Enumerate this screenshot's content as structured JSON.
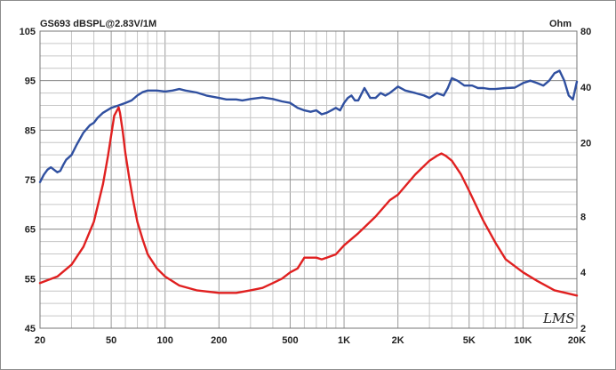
{
  "chart_data": {
    "type": "line",
    "title": "GS693 dBSPL@2.83V/1M",
    "right_unit": "Ohm",
    "brand": "LMS",
    "x_scale": "log",
    "xlim": [
      20,
      20000
    ],
    "ylim_left": [
      45,
      105
    ],
    "ylim_right": [
      2,
      80
    ],
    "y_right_scale": "log",
    "grid": true,
    "x_ticks": [
      {
        "v": 20,
        "label": "20"
      },
      {
        "v": 50,
        "label": "50"
      },
      {
        "v": 100,
        "label": "100"
      },
      {
        "v": 200,
        "label": "200"
      },
      {
        "v": 500,
        "label": "500"
      },
      {
        "v": 1000,
        "label": "1K"
      },
      {
        "v": 2000,
        "label": "2K"
      },
      {
        "v": 5000,
        "label": "5K"
      },
      {
        "v": 10000,
        "label": "10K"
      },
      {
        "v": 20000,
        "label": "20K"
      }
    ],
    "y_left_ticks": [
      {
        "v": 105,
        "label": "105"
      },
      {
        "v": 95,
        "label": "95"
      },
      {
        "v": 85,
        "label": "85"
      },
      {
        "v": 75,
        "label": "75"
      },
      {
        "v": 65,
        "label": "65"
      },
      {
        "v": 55,
        "label": "55"
      },
      {
        "v": 45,
        "label": "45"
      }
    ],
    "y_right_ticks": [
      {
        "v": 80,
        "label": "80"
      },
      {
        "v": 40,
        "label": "40"
      },
      {
        "v": 20,
        "label": "20"
      },
      {
        "v": 8,
        "label": "8"
      },
      {
        "v": 4,
        "label": "4"
      },
      {
        "v": 2,
        "label": "2"
      }
    ],
    "series": [
      {
        "axis": "left",
        "color": "#3050a0",
        "x": [
          20,
          21,
          22,
          23,
          24,
          25,
          26,
          27,
          28,
          30,
          32,
          35,
          38,
          40,
          42,
          45,
          50,
          55,
          60,
          65,
          70,
          75,
          80,
          90,
          100,
          110,
          120,
          130,
          150,
          170,
          200,
          220,
          250,
          270,
          300,
          350,
          400,
          450,
          500,
          550,
          600,
          650,
          700,
          750,
          800,
          850,
          900,
          950,
          1000,
          1050,
          1100,
          1150,
          1200,
          1300,
          1400,
          1500,
          1600,
          1700,
          1800,
          2000,
          2200,
          2500,
          2800,
          3000,
          3300,
          3600,
          3800,
          4000,
          4300,
          4700,
          5200,
          5600,
          6000,
          6500,
          7000,
          8000,
          9000,
          10000,
          11000,
          12000,
          13000,
          14000,
          15000,
          16000,
          17000,
          18000,
          19000,
          20000
        ],
        "y": [
          74.5,
          76,
          77,
          77.5,
          77,
          76.5,
          76.8,
          78,
          79,
          80,
          82,
          84.5,
          86,
          86.5,
          87.5,
          88.5,
          89.5,
          90,
          90.5,
          91,
          92,
          92.7,
          93,
          93,
          92.8,
          93,
          93.3,
          93,
          92.6,
          92,
          91.5,
          91.2,
          91.2,
          91,
          91.3,
          91.6,
          91.3,
          90.8,
          90.5,
          89.5,
          89,
          88.7,
          89,
          88.2,
          88.5,
          89,
          89.5,
          89,
          90.5,
          91.5,
          92,
          91,
          91,
          93.5,
          91.5,
          91.5,
          92.5,
          92,
          92.5,
          93.8,
          93,
          92.5,
          92,
          91.5,
          92.5,
          92,
          93.5,
          95.5,
          95,
          94,
          94,
          93.5,
          93.5,
          93.3,
          93.3,
          93.5,
          93.6,
          94.5,
          95,
          94.5,
          94,
          95,
          96.5,
          97,
          95,
          92,
          91.2,
          94.8
        ]
      },
      {
        "axis": "right",
        "color": "#e02020",
        "x": [
          20,
          25,
          30,
          35,
          40,
          45,
          48,
          50,
          52,
          54,
          55,
          56,
          58,
          60,
          63,
          66,
          70,
          75,
          80,
          90,
          100,
          120,
          150,
          200,
          250,
          300,
          350,
          400,
          450,
          500,
          550,
          600,
          650,
          700,
          750,
          800,
          900,
          1000,
          1200,
          1500,
          1800,
          2000,
          2500,
          3000,
          3300,
          3500,
          3700,
          4000,
          4500,
          5000,
          6000,
          7000,
          8000,
          10000,
          12000,
          15000,
          20000
        ],
        "y": [
          3.5,
          3.8,
          4.4,
          5.5,
          7.5,
          12,
          17,
          22,
          28,
          30,
          31,
          29,
          23,
          17.5,
          13,
          10,
          7.5,
          6,
          5,
          4.2,
          3.8,
          3.4,
          3.2,
          3.1,
          3.1,
          3.2,
          3.3,
          3.5,
          3.7,
          4,
          4.2,
          4.8,
          4.8,
          4.8,
          4.7,
          4.8,
          5,
          5.6,
          6.5,
          8,
          9.8,
          10.5,
          13.5,
          16,
          17,
          17.5,
          17,
          16,
          13.5,
          11,
          7.6,
          5.8,
          4.7,
          4,
          3.6,
          3.2,
          3.0
        ]
      }
    ]
  }
}
